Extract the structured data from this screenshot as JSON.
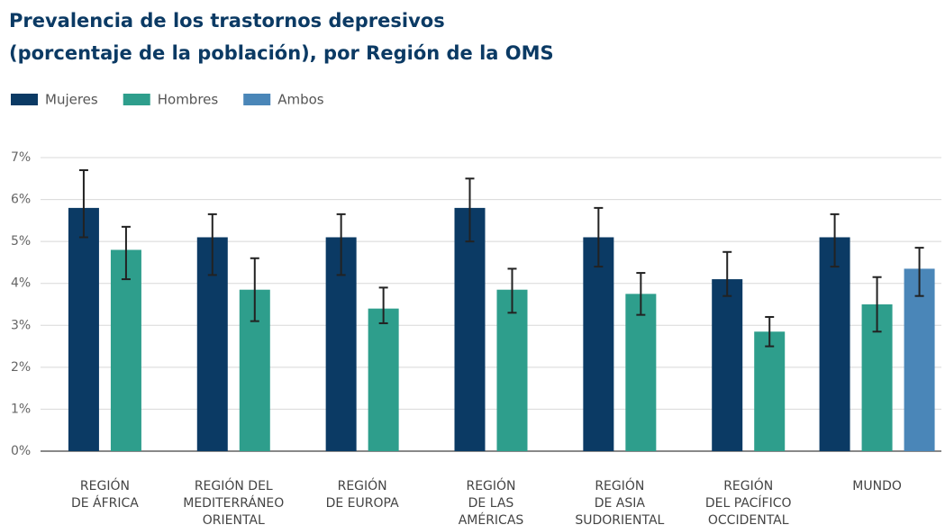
{
  "chart_data": {
    "type": "bar",
    "title": [
      "Prevalencia de los trastornos depresivos",
      "(porcentaje de la población), por Región de la OMS"
    ],
    "categories": [
      [
        "REGIÓN",
        "DE ÁFRICA"
      ],
      [
        "REGIÓN DEL",
        "MEDITERRÁNEO",
        "ORIENTAL"
      ],
      [
        "REGIÓN",
        "DE EUROPA"
      ],
      [
        "REGIÓN",
        "DE LAS",
        "AMÉRICAS"
      ],
      [
        "REGIÓN",
        "DE ASIA",
        "SUDORIENTAL"
      ],
      [
        "REGIÓN",
        "DEL PACÍFICO",
        "OCCIDENTAL"
      ],
      [
        "MUNDO"
      ]
    ],
    "series": [
      {
        "name": "Mujeres",
        "color": "#0b3a64",
        "values": [
          5.8,
          5.1,
          5.1,
          5.8,
          5.1,
          4.1,
          5.1
        ],
        "lower": [
          5.1,
          4.2,
          4.2,
          5.0,
          4.4,
          3.7,
          4.4
        ],
        "upper": [
          6.7,
          5.65,
          5.65,
          6.5,
          5.8,
          4.75,
          5.65
        ]
      },
      {
        "name": "Hombres",
        "color": "#2e9e8c",
        "values": [
          4.8,
          3.85,
          3.4,
          3.85,
          3.75,
          2.85,
          3.5
        ],
        "lower": [
          4.1,
          3.1,
          3.05,
          3.3,
          3.25,
          2.5,
          2.85
        ],
        "upper": [
          5.35,
          4.6,
          3.9,
          4.35,
          4.25,
          3.2,
          4.15
        ]
      },
      {
        "name": "Ambos",
        "color": "#4a86b8",
        "values": [
          null,
          null,
          null,
          null,
          null,
          null,
          4.35
        ],
        "lower": [
          null,
          null,
          null,
          null,
          null,
          null,
          3.7
        ],
        "upper": [
          null,
          null,
          null,
          null,
          null,
          null,
          4.85
        ]
      }
    ],
    "ylim": [
      0,
      7
    ],
    "yticks": [
      {
        "value": 0,
        "label": "0%"
      },
      {
        "value": 1,
        "label": "1%"
      },
      {
        "value": 2,
        "label": "2%"
      },
      {
        "value": 3,
        "label": "3%"
      },
      {
        "value": 4,
        "label": "4%"
      },
      {
        "value": 5,
        "label": "5%"
      },
      {
        "value": 6,
        "label": "6%"
      },
      {
        "value": 7,
        "label": "7%"
      }
    ],
    "grid": true
  }
}
